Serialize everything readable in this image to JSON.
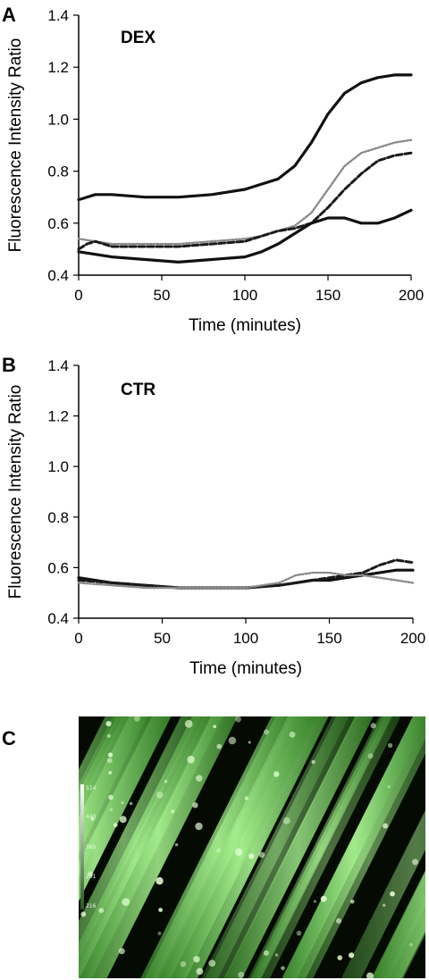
{
  "panels": {
    "a": {
      "letter": "A",
      "label": "DEX"
    },
    "b": {
      "letter": "B",
      "label": "CTR"
    },
    "c": {
      "letter": "C",
      "scale_labels": [
        "514",
        "440",
        "365",
        "291",
        "216"
      ]
    }
  },
  "colors": {
    "series_solid": "#111111",
    "series_dashed": "#1a1a1a",
    "series_dotted": "#8a8a8a",
    "micrograph_background": "#050a03",
    "micrograph_green": "#7ee06a"
  },
  "chart_data": [
    {
      "type": "line",
      "panel": "A",
      "xlabel": "Time (minutes)",
      "ylabel": "Fluorescence Intensity Ratio",
      "xlim": [
        0,
        200
      ],
      "ylim": [
        0.4,
        1.4
      ],
      "xticks": [
        "0",
        "50",
        "100",
        "150",
        "200"
      ],
      "yticks": [
        "0.4",
        "0.6",
        "0.8",
        "1.0",
        "1.2",
        "1.4"
      ],
      "grid": false,
      "series": [
        {
          "style": "solid",
          "x": [
            0,
            10,
            20,
            40,
            60,
            80,
            100,
            110,
            120,
            130,
            140,
            150,
            160,
            170,
            180,
            190,
            200
          ],
          "y": [
            0.69,
            0.71,
            0.71,
            0.7,
            0.7,
            0.71,
            0.73,
            0.75,
            0.77,
            0.82,
            0.91,
            1.02,
            1.1,
            1.14,
            1.16,
            1.17,
            1.17
          ]
        },
        {
          "style": "dotted",
          "x": [
            0,
            10,
            20,
            40,
            60,
            80,
            100,
            110,
            120,
            130,
            140,
            150,
            160,
            170,
            180,
            190,
            200
          ],
          "y": [
            0.54,
            0.53,
            0.52,
            0.52,
            0.52,
            0.53,
            0.54,
            0.55,
            0.57,
            0.59,
            0.64,
            0.73,
            0.82,
            0.87,
            0.89,
            0.91,
            0.92
          ]
        },
        {
          "style": "dashed",
          "x": [
            0,
            5,
            10,
            20,
            40,
            60,
            80,
            100,
            110,
            120,
            130,
            140,
            150,
            160,
            170,
            180,
            190,
            200
          ],
          "y": [
            0.5,
            0.52,
            0.53,
            0.51,
            0.51,
            0.51,
            0.52,
            0.53,
            0.55,
            0.57,
            0.58,
            0.6,
            0.66,
            0.73,
            0.79,
            0.84,
            0.86,
            0.87
          ]
        },
        {
          "style": "solid",
          "x": [
            0,
            10,
            20,
            40,
            60,
            80,
            100,
            110,
            120,
            130,
            140,
            150,
            160,
            170,
            180,
            190,
            200
          ],
          "y": [
            0.49,
            0.48,
            0.47,
            0.46,
            0.45,
            0.46,
            0.47,
            0.49,
            0.52,
            0.56,
            0.6,
            0.62,
            0.62,
            0.6,
            0.6,
            0.62,
            0.65
          ]
        }
      ]
    },
    {
      "type": "line",
      "panel": "B",
      "xlabel": "Time (minutes)",
      "ylabel": "Fluorescence Intensity Ratio",
      "xlim": [
        0,
        200
      ],
      "ylim": [
        0.4,
        1.4
      ],
      "xticks": [
        "0",
        "50",
        "100",
        "150",
        "200"
      ],
      "yticks": [
        "0.4",
        "0.6",
        "0.8",
        "1.0",
        "1.2",
        "1.4"
      ],
      "grid": false,
      "series": [
        {
          "style": "solid",
          "x": [
            0,
            20,
            40,
            60,
            80,
            100,
            120,
            130,
            140,
            150,
            160,
            170,
            180,
            190,
            200
          ],
          "y": [
            0.56,
            0.54,
            0.53,
            0.52,
            0.52,
            0.52,
            0.53,
            0.54,
            0.55,
            0.55,
            0.56,
            0.57,
            0.58,
            0.59,
            0.59
          ]
        },
        {
          "style": "dashed",
          "x": [
            0,
            20,
            40,
            60,
            80,
            100,
            120,
            130,
            140,
            150,
            160,
            170,
            180,
            190,
            200
          ],
          "y": [
            0.55,
            0.54,
            0.53,
            0.52,
            0.52,
            0.52,
            0.53,
            0.54,
            0.55,
            0.56,
            0.57,
            0.58,
            0.61,
            0.63,
            0.62
          ]
        },
        {
          "style": "dotted",
          "x": [
            0,
            20,
            40,
            60,
            80,
            100,
            120,
            130,
            140,
            150,
            160,
            170,
            180,
            190,
            200
          ],
          "y": [
            0.54,
            0.53,
            0.52,
            0.52,
            0.52,
            0.52,
            0.54,
            0.57,
            0.58,
            0.58,
            0.57,
            0.57,
            0.56,
            0.55,
            0.54
          ]
        }
      ]
    }
  ]
}
